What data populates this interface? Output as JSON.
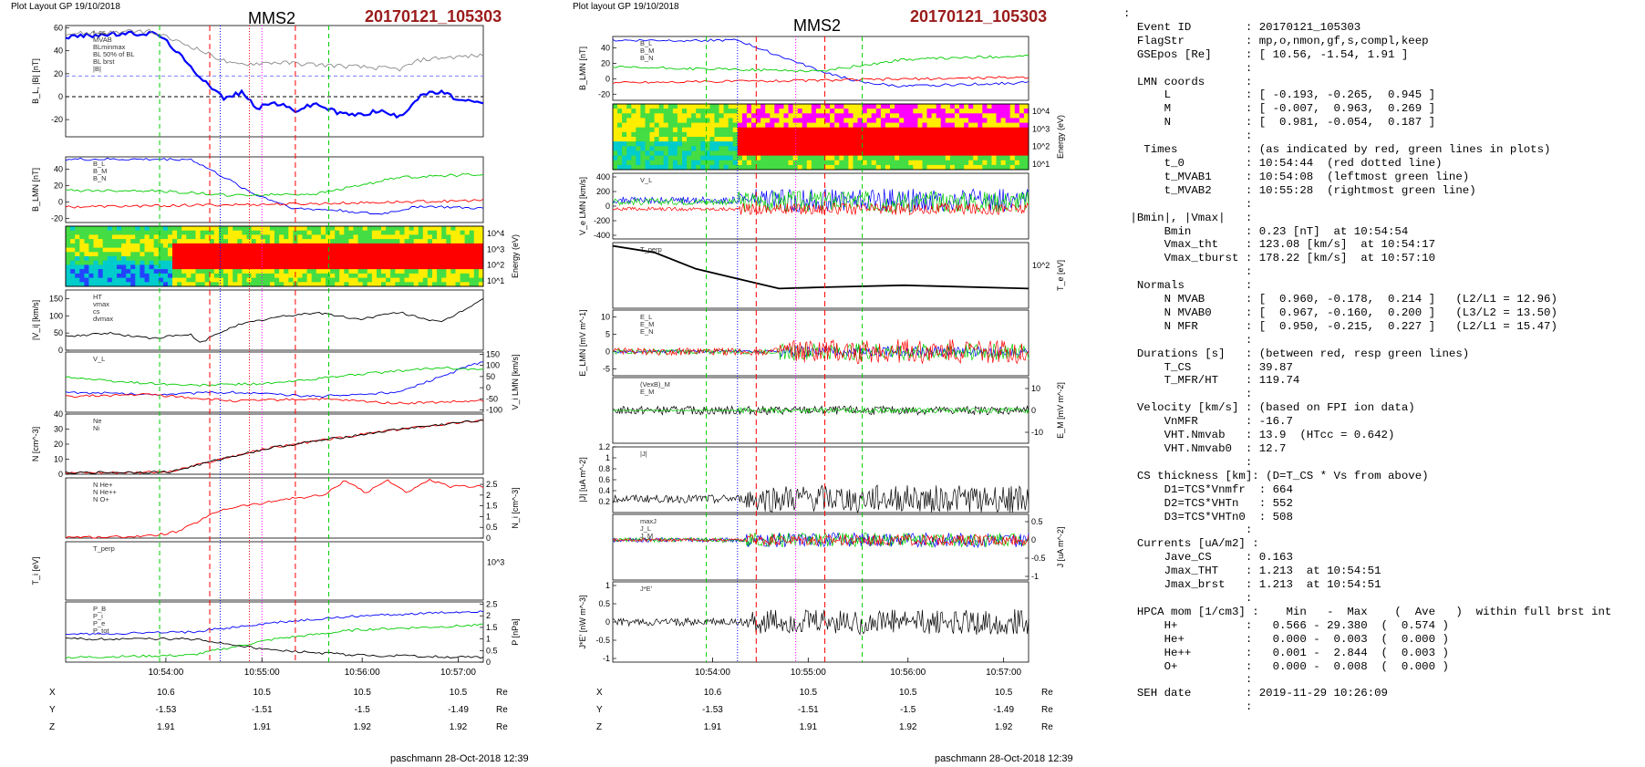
{
  "colors": {
    "black": "#000000",
    "blue": "#0000ff",
    "green": "#00cc00",
    "red": "#ff0000",
    "gray": "#888888",
    "magenta": "#ff00ff",
    "event_red": "#9b1b1b",
    "light_blue": "#7f7fff"
  },
  "left_plot": {
    "header": "Plot Layout GP 19/10/2018",
    "spacecraft": "MMS2",
    "event": "20170121_105303",
    "footer": "paschmann 28-Oct-2018 12:39",
    "x_ticks": [
      "10:54:00",
      "10:55:00",
      "10:56:00",
      "10:57:00"
    ],
    "pos_table": {
      "rows": [
        {
          "axis": "X",
          "values": [
            "10.6",
            "10.5",
            "10.5",
            "10.5"
          ],
          "unit": "Re"
        },
        {
          "axis": "Y",
          "values": [
            "-1.53",
            "-1.51",
            "-1.5",
            "-1.49"
          ],
          "unit": "Re"
        },
        {
          "axis": "Z",
          "values": [
            "1.91",
            "1.91",
            "1.92",
            "1.92"
          ],
          "unit": "Re"
        }
      ]
    }
  },
  "right_plot": {
    "header": "Plot layout GP 19/10/2018",
    "spacecraft": "MMS2",
    "event": "20170121_105303",
    "footer": "paschmann 28-Oct-2018 12:39",
    "x_ticks": [
      "10:54:00",
      "10:55:00",
      "10:56:00",
      "10:57:00"
    ],
    "pos_table": {
      "rows": [
        {
          "axis": "X",
          "values": [
            "10.6",
            "10.5",
            "10.5",
            "10.5"
          ],
          "unit": "Re"
        },
        {
          "axis": "Y",
          "values": [
            "-1.53",
            "-1.51",
            "-1.5",
            "-1.49"
          ],
          "unit": "Re"
        },
        {
          "axis": "Z",
          "values": [
            "1.91",
            "1.91",
            "1.92",
            "1.92"
          ],
          "unit": "Re"
        }
      ]
    }
  },
  "chart_data": [
    {
      "type": "line",
      "panel": "left-bl",
      "ylabel": "B_L, |B| [nT]",
      "ylim": [
        -35,
        62
      ],
      "yticks": [
        -20,
        0,
        20,
        40,
        60
      ],
      "legend": [
        "t_cs",
        "MVAB",
        "BLminmax",
        "BL 50% of BL",
        "BL brst",
        "|B|"
      ],
      "series": [
        {
          "name": "BL brst",
          "color": "blue",
          "x": [
            0,
            0.08,
            0.17,
            0.22,
            0.26,
            0.3,
            0.34,
            0.38,
            0.42,
            0.46,
            0.5,
            0.55,
            0.6,
            0.65,
            0.7,
            0.75,
            0.8,
            0.85,
            0.9,
            0.95,
            1
          ],
          "y": [
            52,
            54,
            55,
            55,
            42,
            25,
            12,
            -2,
            4,
            -10,
            -5,
            -12,
            -6,
            -14,
            -16,
            -12,
            -18,
            2,
            4,
            -4,
            -6
          ]
        },
        {
          "name": "|B|",
          "color": "gray",
          "x": [
            0,
            0.1,
            0.2,
            0.3,
            0.4,
            0.5,
            0.6,
            0.7,
            0.8,
            0.85,
            0.9,
            1
          ],
          "y": [
            55,
            56,
            57,
            44,
            28,
            30,
            28,
            26,
            24,
            32,
            34,
            36
          ]
        }
      ],
      "hlines": [
        {
          "y": 0,
          "color": "black"
        },
        {
          "y": 18,
          "color": "light_blue"
        }
      ]
    },
    {
      "type": "line",
      "panel": "left-blmn",
      "ylabel": "B_LMN [nT]",
      "ylim": [
        -25,
        55
      ],
      "yticks": [
        -20,
        0,
        20,
        40
      ],
      "legend": [
        "B_L",
        "B_M",
        "B_N"
      ],
      "series": [
        {
          "name": "B_L",
          "color": "blue",
          "x": [
            0,
            0.3,
            0.38,
            0.45,
            0.55,
            0.65,
            0.75,
            0.85,
            1
          ],
          "y": [
            52,
            52,
            30,
            10,
            -8,
            -10,
            -15,
            -5,
            -8
          ]
        },
        {
          "name": "B_M",
          "color": "green",
          "x": [
            0,
            0.2,
            0.4,
            0.6,
            0.8,
            1
          ],
          "y": [
            14,
            14,
            8,
            10,
            30,
            34
          ]
        },
        {
          "name": "B_N",
          "color": "red",
          "x": [
            0,
            0.3,
            0.6,
            1
          ],
          "y": [
            -6,
            -4,
            -2,
            2
          ]
        }
      ]
    },
    {
      "type": "heatmap",
      "panel": "left-ion-spectrogram",
      "ylabel": "Energy (eV)",
      "yticks": [
        "10^4",
        "10^3",
        "10^2",
        "10^1"
      ]
    },
    {
      "type": "line",
      "panel": "left-vi-mag",
      "ylabel": "|V_i| [km/s]",
      "ylim": [
        0,
        175
      ],
      "yticks": [
        0,
        50,
        100,
        150
      ],
      "legend": [
        "HT",
        "vmax",
        "cs",
        "dvmax"
      ],
      "series": [
        {
          "name": "|V_i|",
          "color": "black",
          "x": [
            0,
            0.1,
            0.2,
            0.3,
            0.32,
            0.4,
            0.5,
            0.6,
            0.7,
            0.8,
            0.9,
            1
          ],
          "y": [
            40,
            50,
            35,
            45,
            20,
            70,
            95,
            110,
            90,
            110,
            80,
            150
          ]
        }
      ]
    },
    {
      "type": "line",
      "panel": "left-vlmn",
      "ylabel": "V_i LMN [km/s]",
      "ylim": [
        -110,
        160
      ],
      "yticks": [
        -100,
        -50,
        0,
        50,
        100,
        150
      ],
      "legend": [
        "V_L"
      ],
      "series": [
        {
          "name": "V_L",
          "color": "blue",
          "x": [
            0,
            0.2,
            0.4,
            0.6,
            0.8,
            1
          ],
          "y": [
            -20,
            -30,
            -20,
            -40,
            -20,
            120
          ]
        },
        {
          "name": "V_M",
          "color": "green",
          "x": [
            0,
            0.1,
            0.3,
            0.5,
            0.7,
            0.9,
            1
          ],
          "y": [
            50,
            30,
            10,
            20,
            60,
            90,
            80
          ]
        },
        {
          "name": "V_N",
          "color": "red",
          "x": [
            0,
            0.2,
            0.4,
            0.6,
            0.8,
            1
          ],
          "y": [
            -40,
            -30,
            -60,
            -50,
            -70,
            -60
          ]
        }
      ]
    },
    {
      "type": "line",
      "panel": "left-density",
      "ylabel": "N [cm^-3]",
      "ylim": [
        0,
        40
      ],
      "yticks": [
        0,
        10,
        20,
        30,
        40
      ],
      "legend": [
        "Ne",
        "Ni"
      ],
      "series": [
        {
          "name": "Ne",
          "color": "red",
          "x": [
            0,
            0.25,
            0.3,
            0.4,
            0.5,
            0.6,
            0.7,
            0.8,
            0.9,
            1
          ],
          "y": [
            1,
            1.5,
            5,
            12,
            18,
            22,
            26,
            30,
            33,
            36
          ]
        },
        {
          "name": "Ni",
          "color": "black",
          "x": [
            0,
            0.25,
            0.3,
            0.4,
            0.5,
            0.6,
            0.7,
            0.8,
            0.9,
            1
          ],
          "y": [
            1,
            1.5,
            5,
            12,
            18,
            22,
            26,
            30,
            33,
            36
          ]
        }
      ]
    },
    {
      "type": "line",
      "panel": "left-hpca",
      "ylabel": "N_i [cm^-3]",
      "ylim": [
        0,
        2.8
      ],
      "yticks": [
        0,
        0.5,
        1,
        1.5,
        2,
        2.5
      ],
      "legend": [
        "N He+",
        "N He++",
        "N O+"
      ],
      "series": [
        {
          "name": "N He++",
          "color": "red",
          "x": [
            0.1,
            0.2,
            0.27,
            0.32,
            0.37,
            0.42,
            0.47,
            0.52,
            0.57,
            0.62,
            0.67,
            0.72,
            0.77,
            0.82,
            0.87,
            0.92
          ],
          "y": [
            0.05,
            0.1,
            0.3,
            0.8,
            1.3,
            1.5,
            1.6,
            1.8,
            1.9,
            2.0,
            2.7,
            2.1,
            2.7,
            2.1,
            2.7,
            2.4
          ]
        }
      ]
    },
    {
      "type": "line",
      "panel": "left-ti",
      "ylabel": "T_i [eV]",
      "yticks": [
        "10^3"
      ],
      "legend": [
        "T_perp"
      ],
      "series": [
        {
          "name": "T_perp",
          "color": "black",
          "x": [
            0,
            0.2,
            0.35,
            0.5,
            0.7,
            1
          ],
          "y": [
            0.9,
            0.75,
            0.4,
            0.3,
            0.25,
            0.2
          ]
        }
      ]
    },
    {
      "type": "line",
      "panel": "left-pressure",
      "ylabel": "P [nPa]",
      "ylim": [
        0,
        2.6
      ],
      "yticks": [
        0,
        0.5,
        1,
        1.5,
        2,
        2.5
      ],
      "legend": [
        "P_B",
        "P_i",
        "P_e",
        "P_tot"
      ],
      "series": [
        {
          "name": "P_tot",
          "color": "blue",
          "x": [
            0,
            0.3,
            0.5,
            0.7,
            1
          ],
          "y": [
            1.2,
            1.3,
            1.7,
            2.0,
            2.2
          ]
        },
        {
          "name": "P_i",
          "color": "green",
          "x": [
            0,
            0.3,
            0.5,
            0.7,
            1
          ],
          "y": [
            0.2,
            0.3,
            1.0,
            1.4,
            1.6
          ]
        },
        {
          "name": "P_B",
          "color": "black",
          "x": [
            0,
            0.3,
            0.5,
            0.7,
            1
          ],
          "y": [
            1.0,
            1.0,
            0.5,
            0.3,
            0.2
          ]
        }
      ]
    },
    {
      "type": "line",
      "panel": "right-blmn",
      "ylabel": "B_LMN [nT]",
      "ylim": [
        -28,
        55
      ],
      "yticks": [
        -20,
        0,
        20,
        40
      ],
      "legend": [
        "B_L",
        "B_M",
        "B_N"
      ],
      "series": [
        {
          "name": "B_L",
          "color": "blue",
          "x": [
            0,
            0.3,
            0.4,
            0.5,
            0.6,
            0.7,
            0.8,
            1
          ],
          "y": [
            50,
            50,
            30,
            10,
            -5,
            -10,
            -8,
            -5
          ]
        },
        {
          "name": "B_M",
          "color": "green",
          "x": [
            0,
            0.3,
            0.5,
            0.7,
            1
          ],
          "y": [
            15,
            12,
            10,
            25,
            30
          ]
        },
        {
          "name": "B_N",
          "color": "red",
          "x": [
            0,
            0.5,
            1
          ],
          "y": [
            -5,
            -2,
            2
          ]
        }
      ]
    },
    {
      "type": "heatmap",
      "panel": "right-electron-spectrogram",
      "ylabel": "Energy (eV)",
      "yticks": [
        "10^4",
        "10^3",
        "10^2",
        "10^1"
      ]
    },
    {
      "type": "line",
      "panel": "right-ve",
      "ylabel": "V_e LMN [km/s]",
      "ylim": [
        -450,
        450
      ],
      "yticks": [
        -400,
        -200,
        0,
        200,
        400
      ],
      "legend": [
        "V_L"
      ]
    },
    {
      "type": "line",
      "panel": "right-te",
      "ylabel": "T_e [eV]",
      "yticks": [
        "10^2"
      ],
      "legend": [
        "T_perp"
      ],
      "series": [
        {
          "name": "T_perp",
          "color": "black",
          "x": [
            0,
            0.1,
            0.2,
            0.3,
            0.4,
            0.5,
            0.7,
            1
          ],
          "y": [
            0.95,
            0.85,
            0.6,
            0.45,
            0.3,
            0.32,
            0.35,
            0.3
          ]
        }
      ]
    },
    {
      "type": "line",
      "panel": "right-elmn",
      "ylabel": "E_LMN [mV m^-1]",
      "ylim": [
        -7,
        12
      ],
      "yticks": [
        -5,
        0,
        5,
        10
      ],
      "legend": [
        "E_L",
        "E_M",
        "E_N"
      ]
    },
    {
      "type": "line",
      "panel": "right-em",
      "ylabel": "E_M [mV m^-2]",
      "ylim": [
        -15,
        15
      ],
      "yticks": [
        -10,
        0,
        10
      ],
      "legend": [
        "(VexB)_M",
        "E_M"
      ]
    },
    {
      "type": "line",
      "panel": "right-jmag",
      "ylabel": "|J| [uA m^-2]",
      "ylim": [
        0,
        1.2
      ],
      "yticks": [
        0.2,
        0.4,
        0.6,
        0.8,
        1.0,
        1.2
      ],
      "legend": [
        "|J|"
      ]
    },
    {
      "type": "line",
      "panel": "right-jlmn",
      "ylabel": "J [uA m^-2]",
      "ylim": [
        -1.1,
        0.7
      ],
      "yticks": [
        -1.0,
        -0.5,
        0.0,
        0.5
      ],
      "legend": [
        "maxJ",
        "J_L",
        "J_M"
      ]
    },
    {
      "type": "line",
      "panel": "right-jdote",
      "ylabel": "J*E' [nW m^-3]",
      "ylim": [
        -1.1,
        1.1
      ],
      "yticks": [
        -1.0,
        -0.5,
        0.0,
        0.5,
        1.0
      ],
      "legend": [
        "J*E'"
      ]
    }
  ],
  "info_lines": [
    ":",
    "  Event ID        : 20170121_105303",
    "  FlagStr         : mp,o,nmon,gf,s,compl,keep",
    "  GSEpos [Re]     : [ 10.56, -1.54, 1.91 ]",
    "                  :",
    "  LMN coords      :",
    "      L           : [ -0.193, -0.265,  0.945 ]",
    "      M           : [ -0.007,  0.963,  0.269 ]",
    "      N           : [  0.981, -0.054,  0.187 ]",
    "                  :",
    "   Times          : (as indicated by red, green lines in plots)",
    "      t_0         : 10:54:44  (red dotted line)",
    "      t_MVAB1     : 10:54:08  (leftmost green line)",
    "      t_MVAB2     : 10:55:28  (rightmost green line)",
    "                  :",
    " |Bmin|, |Vmax|   :",
    "      Bmin        : 0.23 [nT]  at 10:54:54",
    "      Vmax_tht    : 123.08 [km/s]  at 10:54:17",
    "      Vmax_tburst : 178.22 [km/s]  at 10:57:10",
    "                  :",
    "  Normals         :",
    "      N MVAB      : [  0.960, -0.178,  0.214 ]   (L2/L1 = 12.96)",
    "      N MVAB0     : [  0.967, -0.160,  0.200 ]   (L3/L2 = 13.50)",
    "      N MFR       : [  0.950, -0.215,  0.227 ]   (L2/L1 = 15.47)",
    "                  :",
    "  Durations [s]   : (between red, resp green lines)",
    "      T_CS        : 39.87",
    "      T_MFR/HT    : 119.74",
    "                  :",
    "  Velocity [km/s] : (based on FPI ion data)",
    "      VnMFR       : -16.7",
    "      VHT.Nmvab   : 13.9  (HTcc = 0.642)",
    "      VHT.Nmvab0  : 12.7",
    "                  :",
    "  CS thickness [km]: (D=T_CS * Vs from above)",
    "      D1=TCS*Vnmfr  : 664",
    "      D2=TCS*VHTn   : 552",
    "      D3=TCS*VHTn0  : 508",
    "                  :",
    "  Currents [uA/m2] :",
    "      Jave_CS     : 0.163",
    "      Jmax_THT    : 1.213  at 10:54:51",
    "      Jmax_brst   : 1.213  at 10:54:51",
    "                  :",
    "  HPCA mom [1/cm3] :    Min   -  Max    (  Ave   )  within full brst int",
    "      H+          :   0.566 - 29.380  (  0.574 )",
    "      He+         :   0.000 -  0.003  (  0.000 )",
    "      He++        :   0.001 -  2.844  (  0.003 )",
    "      O+          :   0.000 -  0.008  (  0.000 )",
    "                  :",
    "  SEH date        : 2019-11-29 10:26:09",
    "                  :"
  ]
}
